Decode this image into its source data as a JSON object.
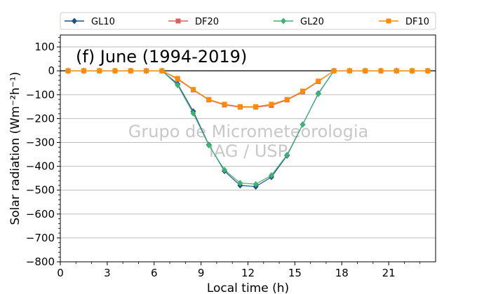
{
  "chart_data": {
    "type": "line",
    "title": "(f) June (1994-2019)",
    "xlabel": "Local time (h)",
    "ylabel": "Solar radiation (Wm⁻²h⁻¹)",
    "xlim": [
      0,
      24
    ],
    "ylim": [
      -800,
      150
    ],
    "xticks": [
      0,
      3,
      6,
      9,
      12,
      15,
      18,
      21
    ],
    "yticks": [
      -800,
      -700,
      -600,
      -500,
      -400,
      -300,
      -200,
      -100,
      0,
      100
    ],
    "grid": "horizontal",
    "legend_position": "top",
    "watermark": [
      "Grupo de Micrometeorologia",
      "IAG / USP"
    ],
    "x": [
      0.5,
      1.5,
      2.5,
      3.5,
      4.5,
      5.5,
      6.5,
      7.5,
      8.5,
      9.5,
      10.5,
      11.5,
      12.5,
      13.5,
      14.5,
      15.5,
      16.5,
      17.5,
      18.5,
      19.5,
      20.5,
      21.5,
      22.5,
      23.5
    ],
    "series": [
      {
        "name": "GL10",
        "color": "#1f4e8c",
        "marker": "diamond",
        "values": [
          0,
          0,
          0,
          0,
          0,
          0,
          0,
          -55,
          -170,
          -310,
          -420,
          -480,
          -485,
          -445,
          -355,
          -225,
          -95,
          0,
          0,
          0,
          0,
          0,
          0,
          0
        ]
      },
      {
        "name": "DF20",
        "color": "#d96060",
        "marker": "square",
        "values": [
          0,
          0,
          0,
          0,
          0,
          0,
          0,
          -35,
          -80,
          -122,
          -143,
          -152,
          -152,
          -145,
          -122,
          -88,
          -45,
          0,
          0,
          0,
          0,
          0,
          0,
          0
        ]
      },
      {
        "name": "GL20",
        "color": "#3cb371",
        "marker": "diamond",
        "values": [
          0,
          0,
          0,
          0,
          0,
          0,
          0,
          -60,
          -178,
          -312,
          -415,
          -470,
          -475,
          -438,
          -352,
          -225,
          -97,
          0,
          0,
          0,
          0,
          0,
          0,
          0
        ]
      },
      {
        "name": "DF10",
        "color": "#ff8c00",
        "marker": "square",
        "values": [
          0,
          0,
          0,
          0,
          0,
          0,
          0,
          -32,
          -78,
          -120,
          -140,
          -150,
          -150,
          -140,
          -120,
          -85,
          -43,
          0,
          0,
          0,
          0,
          0,
          0,
          0
        ]
      }
    ]
  }
}
